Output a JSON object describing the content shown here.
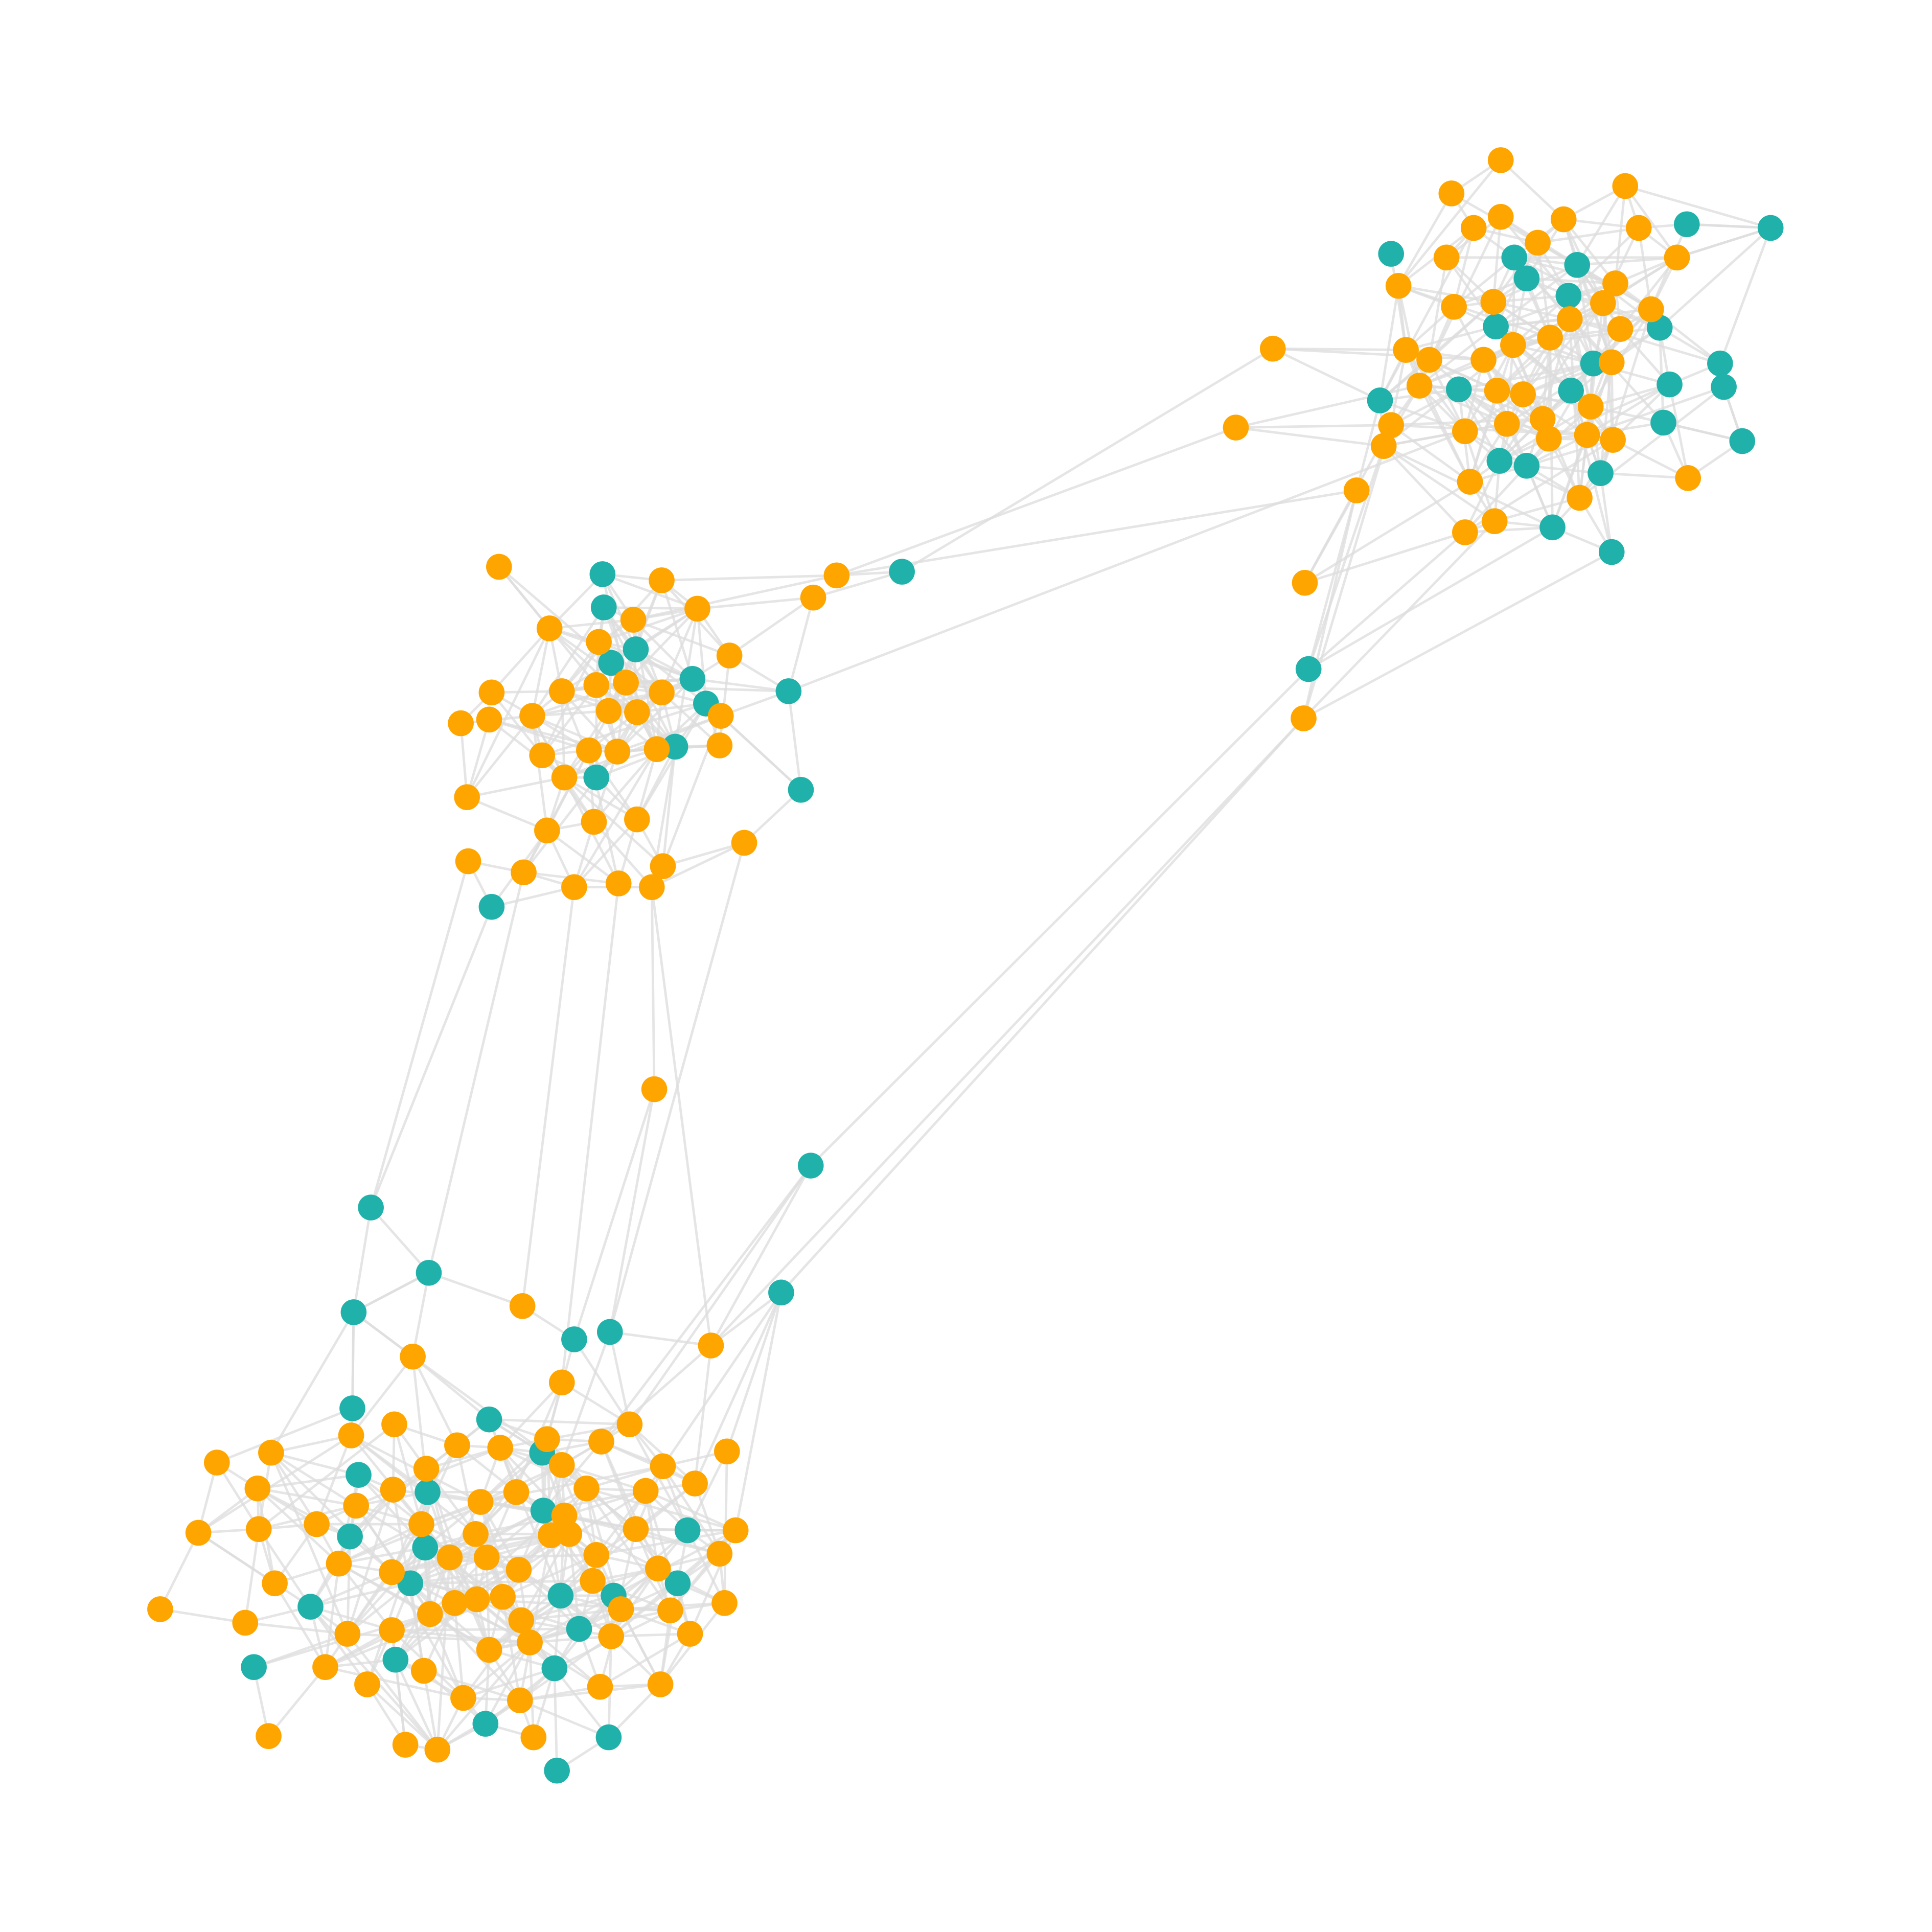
{
  "colors": {
    "background": "#ffffff",
    "edge": "#dcdcdc",
    "orange": "#ffa500",
    "teal": "#20b2aa"
  },
  "chart_data": {
    "type": "network",
    "title": "",
    "clusters": [
      {
        "id": "upper-right",
        "teal": [
          [
            1129,
            206
          ],
          [
            1229,
            209
          ],
          [
            1239,
            226
          ],
          [
            1280,
            215
          ],
          [
            1273,
            240
          ],
          [
            1214,
            265
          ],
          [
            1347,
            266
          ],
          [
            1293,
            295
          ],
          [
            1396,
            295
          ],
          [
            1399,
            314
          ],
          [
            1355,
            312
          ],
          [
            1120,
            325
          ],
          [
            1184,
            316
          ],
          [
            1275,
            317
          ],
          [
            1350,
            343
          ],
          [
            1414,
            358
          ],
          [
            1217,
            374
          ],
          [
            1239,
            378
          ],
          [
            1299,
            384
          ],
          [
            1260,
            428
          ],
          [
            1308,
            448
          ],
          [
            1369,
            182
          ],
          [
            1437,
            185
          ]
        ],
        "orange": [
          [
            1218,
            130
          ],
          [
            1178,
            157
          ],
          [
            1319,
            151
          ],
          [
            1196,
            185
          ],
          [
            1218,
            176
          ],
          [
            1269,
            178
          ],
          [
            1330,
            185
          ],
          [
            1174,
            209
          ],
          [
            1248,
            197
          ],
          [
            1361,
            209
          ],
          [
            1135,
            232
          ],
          [
            1311,
            230
          ],
          [
            1180,
            249
          ],
          [
            1212,
            245
          ],
          [
            1301,
            246
          ],
          [
            1340,
            251
          ],
          [
            1274,
            259
          ],
          [
            1315,
            267
          ],
          [
            1228,
            280
          ],
          [
            1258,
            274
          ],
          [
            1141,
            284
          ],
          [
            1160,
            292
          ],
          [
            1204,
            292
          ],
          [
            1308,
            294
          ],
          [
            1152,
            313
          ],
          [
            1215,
            317
          ],
          [
            1236,
            320
          ],
          [
            1291,
            330
          ],
          [
            1129,
            345
          ],
          [
            1223,
            344
          ],
          [
            1252,
            340
          ],
          [
            1189,
            350
          ],
          [
            1123,
            362
          ],
          [
            1257,
            356
          ],
          [
            1288,
            353
          ],
          [
            1309,
            357
          ],
          [
            1370,
            388
          ],
          [
            1193,
            391
          ],
          [
            1101,
            398
          ],
          [
            1282,
            404
          ],
          [
            1213,
            423
          ],
          [
            1189,
            432
          ]
        ]
      },
      {
        "id": "middle-left",
        "teal": [
          [
            489,
            466
          ],
          [
            490,
            493
          ],
          [
            516,
            527
          ],
          [
            496,
            538
          ],
          [
            562,
            551
          ],
          [
            573,
            571
          ],
          [
            640,
            561
          ],
          [
            548,
            606
          ],
          [
            484,
            631
          ],
          [
            650,
            641
          ],
          [
            399,
            736
          ]
        ],
        "orange": [
          [
            405,
            460
          ],
          [
            537,
            471
          ],
          [
            566,
            494
          ],
          [
            514,
            503
          ],
          [
            446,
            510
          ],
          [
            486,
            521
          ],
          [
            592,
            532
          ],
          [
            399,
            562
          ],
          [
            456,
            561
          ],
          [
            484,
            556
          ],
          [
            508,
            554
          ],
          [
            537,
            562
          ],
          [
            374,
            587
          ],
          [
            397,
            584
          ],
          [
            432,
            581
          ],
          [
            494,
            577
          ],
          [
            517,
            578
          ],
          [
            585,
            581
          ],
          [
            440,
            613
          ],
          [
            478,
            609
          ],
          [
            501,
            610
          ],
          [
            533,
            608
          ],
          [
            584,
            605
          ],
          [
            458,
            631
          ],
          [
            379,
            647
          ],
          [
            444,
            674
          ],
          [
            482,
            667
          ],
          [
            517,
            665
          ],
          [
            604,
            684
          ],
          [
            380,
            699
          ],
          [
            538,
            703
          ],
          [
            425,
            708
          ],
          [
            466,
            720
          ],
          [
            502,
            717
          ],
          [
            529,
            720
          ]
        ]
      },
      {
        "id": "lower-left",
        "teal": [
          [
            301,
            980
          ],
          [
            348,
            1033
          ],
          [
            287,
            1065
          ],
          [
            466,
            1087
          ],
          [
            495,
            1081
          ],
          [
            286,
            1143
          ],
          [
            397,
            1152
          ],
          [
            440,
            1179
          ],
          [
            291,
            1197
          ],
          [
            347,
            1211
          ],
          [
            441,
            1226
          ],
          [
            284,
            1247
          ],
          [
            345,
            1256
          ],
          [
            558,
            1242
          ],
          [
            333,
            1285
          ],
          [
            550,
            1285
          ],
          [
            252,
            1304
          ],
          [
            455,
            1295
          ],
          [
            498,
            1295
          ],
          [
            470,
            1322
          ],
          [
            321,
            1347
          ],
          [
            206,
            1353
          ],
          [
            450,
            1354
          ],
          [
            394,
            1399
          ],
          [
            494,
            1410
          ],
          [
            452,
            1437
          ]
        ],
        "orange": [
          [
            424,
            1060
          ],
          [
            335,
            1101
          ],
          [
            577,
            1092
          ],
          [
            456,
            1122
          ],
          [
            320,
            1156
          ],
          [
            511,
            1156
          ],
          [
            285,
            1165
          ],
          [
            371,
            1173
          ],
          [
            406,
            1175
          ],
          [
            444,
            1168
          ],
          [
            488,
            1170
          ],
          [
            220,
            1179
          ],
          [
            590,
            1178
          ],
          [
            176,
            1187
          ],
          [
            346,
            1192
          ],
          [
            456,
            1189
          ],
          [
            538,
            1190
          ],
          [
            209,
            1208
          ],
          [
            319,
            1209
          ],
          [
            419,
            1211
          ],
          [
            476,
            1208
          ],
          [
            524,
            1210
          ],
          [
            564,
            1204
          ],
          [
            390,
            1219
          ],
          [
            289,
            1222
          ],
          [
            458,
            1230
          ],
          [
            342,
            1237
          ],
          [
            257,
            1237
          ],
          [
            210,
            1241
          ],
          [
            161,
            1244
          ],
          [
            386,
            1245
          ],
          [
            447,
            1246
          ],
          [
            462,
            1245
          ],
          [
            516,
            1241
          ],
          [
            597,
            1242
          ],
          [
            365,
            1264
          ],
          [
            395,
            1264
          ],
          [
            275,
            1269
          ],
          [
            421,
            1274
          ],
          [
            484,
            1262
          ],
          [
            318,
            1276
          ],
          [
            584,
            1261
          ],
          [
            534,
            1273
          ],
          [
            223,
            1285
          ],
          [
            481,
            1283
          ],
          [
            130,
            1306
          ],
          [
            369,
            1301
          ],
          [
            387,
            1298
          ],
          [
            408,
            1296
          ],
          [
            349,
            1310
          ],
          [
            504,
            1306
          ],
          [
            544,
            1307
          ],
          [
            588,
            1301
          ],
          [
            199,
            1317
          ],
          [
            423,
            1315
          ],
          [
            282,
            1326
          ],
          [
            318,
            1323
          ],
          [
            496,
            1328
          ],
          [
            560,
            1326
          ],
          [
            430,
            1333
          ],
          [
            397,
            1339
          ],
          [
            264,
            1353
          ],
          [
            344,
            1356
          ],
          [
            298,
            1367
          ],
          [
            487,
            1369
          ],
          [
            536,
            1367
          ],
          [
            376,
            1378
          ],
          [
            422,
            1380
          ],
          [
            218,
            1409
          ],
          [
            433,
            1410
          ],
          [
            329,
            1416
          ],
          [
            355,
            1420
          ]
        ]
      },
      {
        "id": "bridges",
        "teal": [
          [
            732,
            464
          ],
          [
            1062,
            543
          ],
          [
            658,
            946
          ],
          [
            634,
            1049
          ]
        ],
        "orange": [
          [
            1033,
            283
          ],
          [
            1003,
            347
          ],
          [
            679,
            467
          ],
          [
            660,
            485
          ],
          [
            1059,
            473
          ],
          [
            1058,
            583
          ],
          [
            531,
            884
          ]
        ]
      }
    ]
  }
}
